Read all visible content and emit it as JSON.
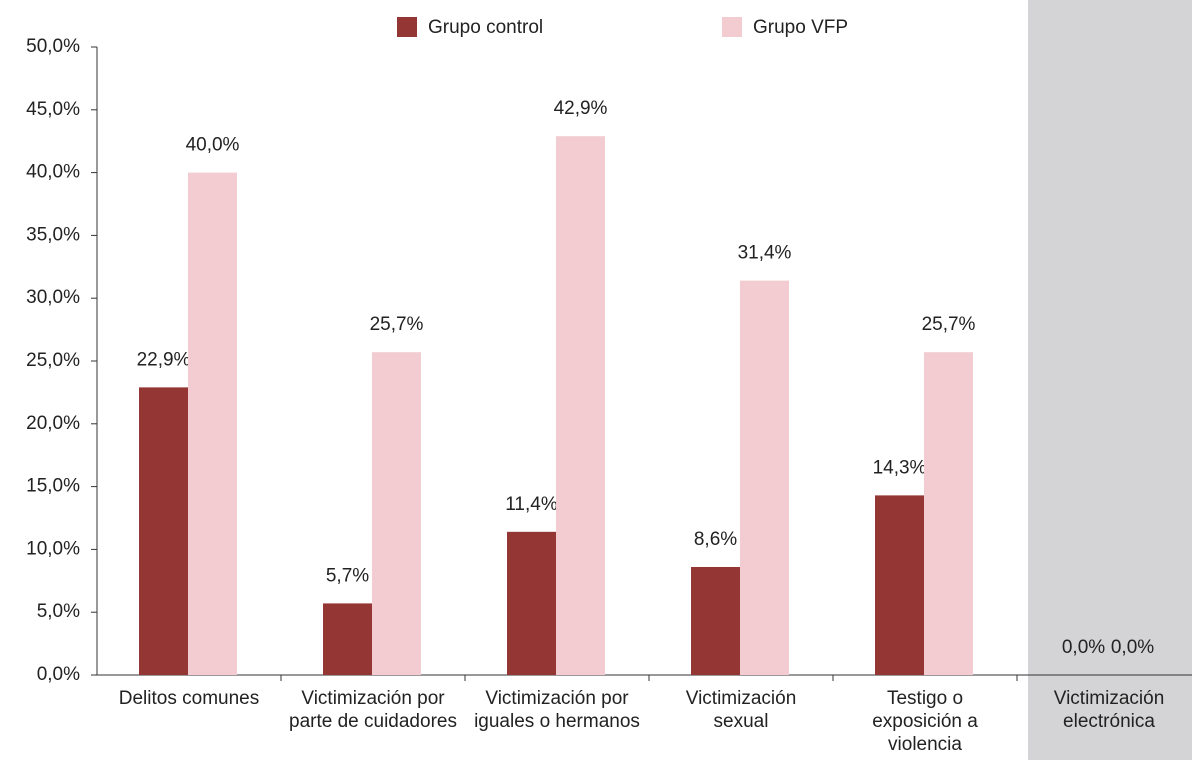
{
  "chart_data": {
    "type": "bar",
    "categories": [
      "Delitos comunes",
      "Victimización por parte de cuidadores",
      "Victimización por iguales o hermanos",
      "Victimización sexual",
      "Testigo o exposición a violencia",
      "Victimización electrónica"
    ],
    "series": [
      {
        "name": "Grupo control",
        "color": "#943634",
        "values": [
          22.9,
          5.7,
          11.4,
          8.6,
          14.3,
          0
        ],
        "value_labels": [
          "22,9%",
          "5,7%",
          "11,4%",
          "8,6%",
          "14,3%",
          "0,0%"
        ]
      },
      {
        "name": "Grupo VFP",
        "color": "#f2ccd0",
        "values": [
          40,
          25.7,
          42.9,
          31.4,
          25.7,
          0
        ],
        "value_labels": [
          "40,0%",
          "25,7%",
          "42,9%",
          "31,4%",
          "25,7%",
          "0,0%"
        ]
      }
    ],
    "ylim": [
      0,
      50
    ],
    "yticks": [
      {
        "value": 0,
        "label": "0,0%"
      },
      {
        "value": 5,
        "label": "5,0%"
      },
      {
        "value": 10,
        "label": "10,0%"
      },
      {
        "value": 15,
        "label": "15,0%"
      },
      {
        "value": 20,
        "label": "20,0%"
      },
      {
        "value": 25,
        "label": "25,0%"
      },
      {
        "value": 30,
        "label": "30,0%"
      },
      {
        "value": 35,
        "label": "35,0%"
      },
      {
        "value": 40,
        "label": "40,0%"
      },
      {
        "value": 45,
        "label": "45,0%"
      },
      {
        "value": 50,
        "label": "50,0%"
      }
    ],
    "grid": false,
    "legend": "top"
  }
}
